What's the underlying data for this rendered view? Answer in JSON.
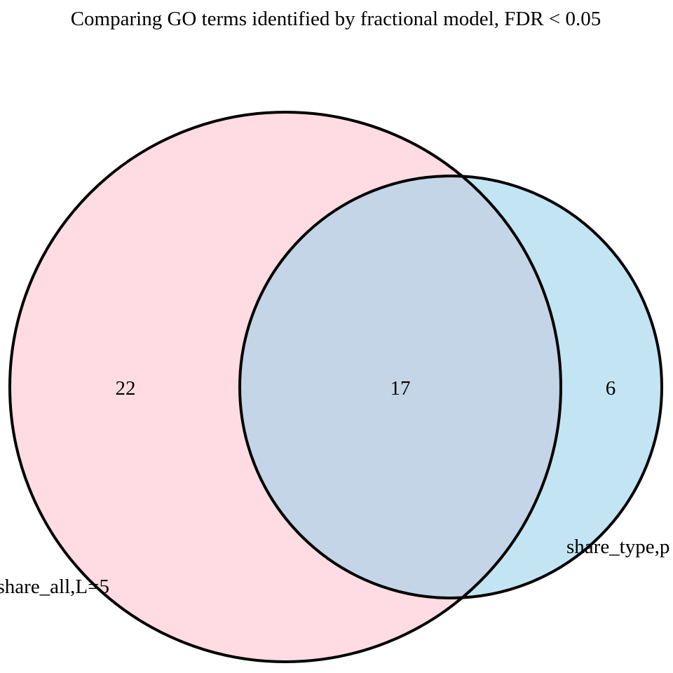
{
  "title": "Comparing GO terms identified by fractional model, FDR < 0.05",
  "colors": {
    "set_a_fill": "#ffdce3",
    "set_b_fill": "#c3e5f3",
    "overlap_fill": "#c3d5e6",
    "outline": "#000000"
  },
  "sets": [
    {
      "label": "share_all,L=5",
      "only_count": "22"
    },
    {
      "label": "share_type,p",
      "only_count": "6"
    }
  ],
  "overlap_count": "17"
}
